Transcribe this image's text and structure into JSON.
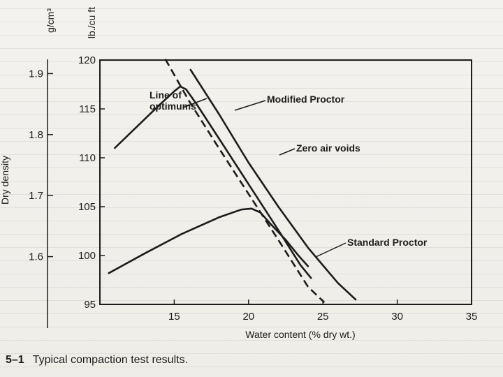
{
  "chart_data": {
    "type": "line",
    "caption": {
      "number": "5–1",
      "text": "Typical compaction test results."
    },
    "xlabel": "Water content (% dry wt.)",
    "ylabel_primary": "lb./cu ft",
    "ylabel_secondary_unit": "g/cm³",
    "ylabel_secondary": "Dry density",
    "xlim": [
      10,
      35
    ],
    "ylim": [
      95,
      120
    ],
    "x_ticks": [
      15,
      20,
      25,
      30,
      35
    ],
    "x_tick_labels": [
      "15",
      "20",
      "25",
      "30",
      "35"
    ],
    "y_ticks": [
      95,
      100,
      105,
      110,
      115,
      120
    ],
    "y_tick_labels": [
      "95",
      "100",
      "105",
      "110",
      "115",
      "120"
    ],
    "y2_ticks": [
      1.6,
      1.7,
      1.8,
      1.9
    ],
    "y2_tick_labels": [
      "1.6",
      "1.7",
      "1.8",
      "1.9"
    ],
    "y2_conversion_per_unit": 0.0160185,
    "grid": false,
    "series": [
      {
        "name": "Modified Proctor",
        "style": "solid",
        "x": [
          11.0,
          12.5,
          14.0,
          15.0,
          15.4,
          15.8,
          16.5,
          18.0,
          20.0,
          22.0,
          23.5,
          24.2
        ],
        "y": [
          111.0,
          113.2,
          115.4,
          116.8,
          117.3,
          117.0,
          115.5,
          112.0,
          107.3,
          102.6,
          99.0,
          97.7
        ]
      },
      {
        "name": "Standard Proctor",
        "style": "solid",
        "x": [
          10.6,
          13.0,
          15.5,
          18.0,
          19.5,
          20.2,
          20.8,
          21.5,
          22.5,
          23.3,
          24.0
        ],
        "y": [
          98.2,
          100.2,
          102.2,
          103.9,
          104.7,
          104.8,
          104.4,
          103.2,
          101.6,
          100.1,
          98.9
        ]
      },
      {
        "name": "Zero air voids",
        "style": "solid",
        "x": [
          16.1,
          18.0,
          20.0,
          22.0,
          24.0,
          26.0,
          27.2
        ],
        "y": [
          119.0,
          114.5,
          109.5,
          105.0,
          100.8,
          97.2,
          95.5
        ]
      },
      {
        "name": "Line of optimums",
        "style": "dashed",
        "x": [
          14.4,
          16.0,
          18.0,
          20.0,
          22.0,
          24.0,
          25.1
        ],
        "y": [
          120.1,
          115.8,
          111.0,
          106.3,
          101.6,
          96.8,
          95.2
        ]
      }
    ],
    "annotations": [
      {
        "lines": [
          "Line of",
          "optimums"
        ]
      },
      {
        "lines": [
          "Modified Proctor"
        ]
      },
      {
        "lines": [
          "Zero air voids"
        ]
      },
      {
        "lines": [
          "Standard Proctor"
        ]
      }
    ]
  }
}
